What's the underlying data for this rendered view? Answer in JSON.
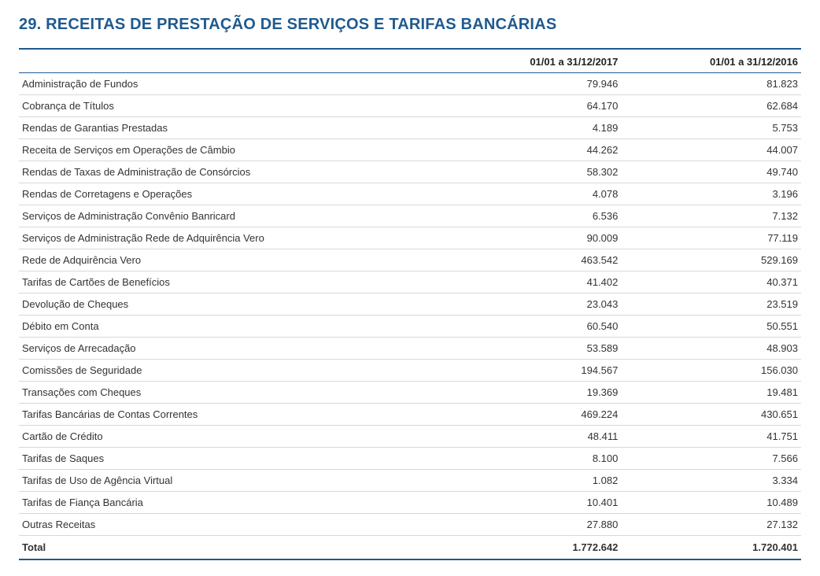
{
  "title": "29. RECEITAS DE PRESTAÇÃO DE SERVIÇOS E TARIFAS BANCÁRIAS",
  "colors": {
    "heading": "#1f5a8f",
    "border_strong": "#1f5a8f",
    "border_light": "#d8d8d8",
    "text": "#333333",
    "background": "#ffffff"
  },
  "table": {
    "type": "table",
    "columns": [
      "",
      "01/01 a 31/12/2017",
      "01/01 a 31/12/2016"
    ],
    "rows": [
      [
        "Administração de Fundos",
        "79.946",
        "81.823"
      ],
      [
        "Cobrança de Títulos",
        "64.170",
        "62.684"
      ],
      [
        "Rendas de Garantias Prestadas",
        "4.189",
        "5.753"
      ],
      [
        "Receita de Serviços em Operações de Câmbio",
        "44.262",
        "44.007"
      ],
      [
        "Rendas de Taxas de Administração de Consórcios",
        "58.302",
        "49.740"
      ],
      [
        "Rendas de Corretagens e Operações",
        "4.078",
        "3.196"
      ],
      [
        "Serviços de Administração Convênio Banricard",
        "6.536",
        "7.132"
      ],
      [
        "Serviços de Administração Rede de Adquirência Vero",
        "90.009",
        "77.119"
      ],
      [
        "Rede de Adquirência Vero",
        "463.542",
        "529.169"
      ],
      [
        "Tarifas de Cartões de Benefícios",
        "41.402",
        "40.371"
      ],
      [
        "Devolução de Cheques",
        "23.043",
        "23.519"
      ],
      [
        "Débito em Conta",
        "60.540",
        "50.551"
      ],
      [
        "Serviços de Arrecadação",
        "53.589",
        "48.903"
      ],
      [
        "Comissões de Seguridade",
        "194.567",
        "156.030"
      ],
      [
        "Transações com Cheques",
        "19.369",
        "19.481"
      ],
      [
        "Tarifas Bancárias de Contas Correntes",
        "469.224",
        "430.651"
      ],
      [
        "Cartão de Crédito",
        "48.411",
        "41.751"
      ],
      [
        "Tarifas de Saques",
        "8.100",
        "7.566"
      ],
      [
        "Tarifas de Uso de Agência Virtual",
        "1.082",
        "3.334"
      ],
      [
        "Tarifas de Fiança Bancária",
        "10.401",
        "10.489"
      ],
      [
        "Outras Receitas",
        "27.880",
        "27.132"
      ]
    ],
    "total": [
      "Total",
      "1.772.642",
      "1.720.401"
    ]
  }
}
